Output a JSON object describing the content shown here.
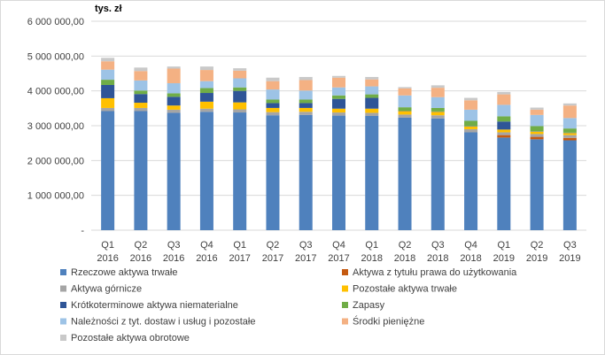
{
  "chart_data": {
    "type": "bar",
    "stacked": true,
    "unit_label": "tys. zł",
    "title": "",
    "xlabel": "",
    "ylabel": "",
    "ylim": [
      0,
      6000000
    ],
    "y_ticks": [
      "-",
      "1 000 000,00",
      "2 000 000,00",
      "3 000 000,00",
      "4 000 000,00",
      "5 000 000,00",
      "6 000 000,00"
    ],
    "grid": true,
    "legend_position": "bottom",
    "categories": [
      [
        "Q1",
        "2016"
      ],
      [
        "Q2",
        "2016"
      ],
      [
        "Q3",
        "2016"
      ],
      [
        "Q4",
        "2016"
      ],
      [
        "Q1",
        "2017"
      ],
      [
        "Q2",
        "2017"
      ],
      [
        "Q3",
        "2017"
      ],
      [
        "Q4",
        "2017"
      ],
      [
        "Q1",
        "2018"
      ],
      [
        "Q2",
        "2018"
      ],
      [
        "Q3",
        "2018"
      ],
      [
        "Q4",
        "2018"
      ],
      [
        "Q1",
        "2019"
      ],
      [
        "Q2",
        "2019"
      ],
      [
        "Q3",
        "2019"
      ]
    ],
    "series": [
      {
        "name": "Rzeczowe aktywa trwałe",
        "color": "#4f81bd",
        "values": [
          3420000,
          3420000,
          3370000,
          3400000,
          3380000,
          3300000,
          3310000,
          3290000,
          3280000,
          3230000,
          3210000,
          2810000,
          2660000,
          2610000,
          2580000
        ]
      },
      {
        "name": "Aktywa z tytułu prawa do użytkowania",
        "color": "#c55a11",
        "values": [
          0,
          0,
          0,
          0,
          0,
          0,
          0,
          0,
          0,
          0,
          0,
          0,
          70000,
          70000,
          70000
        ]
      },
      {
        "name": "Aktywa górnicze",
        "color": "#a5a5a5",
        "values": [
          90000,
          90000,
          90000,
          90000,
          90000,
          90000,
          90000,
          90000,
          90000,
          90000,
          90000,
          90000,
          80000,
          80000,
          80000
        ]
      },
      {
        "name": "Pozostałe aktywa trwałe",
        "color": "#ffc000",
        "values": [
          280000,
          150000,
          120000,
          200000,
          200000,
          120000,
          110000,
          110000,
          120000,
          100000,
          100000,
          80000,
          80000,
          70000,
          60000
        ]
      },
      {
        "name": "Krótkoterminowe aktywa niematerialne",
        "color": "#2f5597",
        "values": [
          380000,
          250000,
          250000,
          250000,
          330000,
          140000,
          140000,
          280000,
          310000,
          10000,
          10000,
          10000,
          230000,
          10000,
          10000
        ]
      },
      {
        "name": "Zapasy",
        "color": "#70ad47",
        "values": [
          150000,
          100000,
          100000,
          140000,
          100000,
          100000,
          100000,
          100000,
          100000,
          100000,
          100000,
          150000,
          150000,
          150000,
          120000
        ]
      },
      {
        "name": "Należności z tyt. dostaw i usług i pozostałe",
        "color": "#9dc3e6",
        "values": [
          290000,
          290000,
          290000,
          200000,
          260000,
          290000,
          260000,
          230000,
          230000,
          340000,
          310000,
          320000,
          330000,
          320000,
          300000
        ]
      },
      {
        "name": "Środki pieniężne",
        "color": "#f4b183",
        "values": [
          240000,
          270000,
          420000,
          320000,
          220000,
          240000,
          300000,
          280000,
          200000,
          200000,
          270000,
          270000,
          300000,
          150000,
          360000
        ]
      },
      {
        "name": "Pozostałe aktywa obrotowe",
        "color": "#c9c9c9",
        "values": [
          100000,
          100000,
          60000,
          100000,
          70000,
          100000,
          90000,
          50000,
          70000,
          40000,
          70000,
          70000,
          70000,
          60000,
          60000
        ]
      }
    ]
  }
}
